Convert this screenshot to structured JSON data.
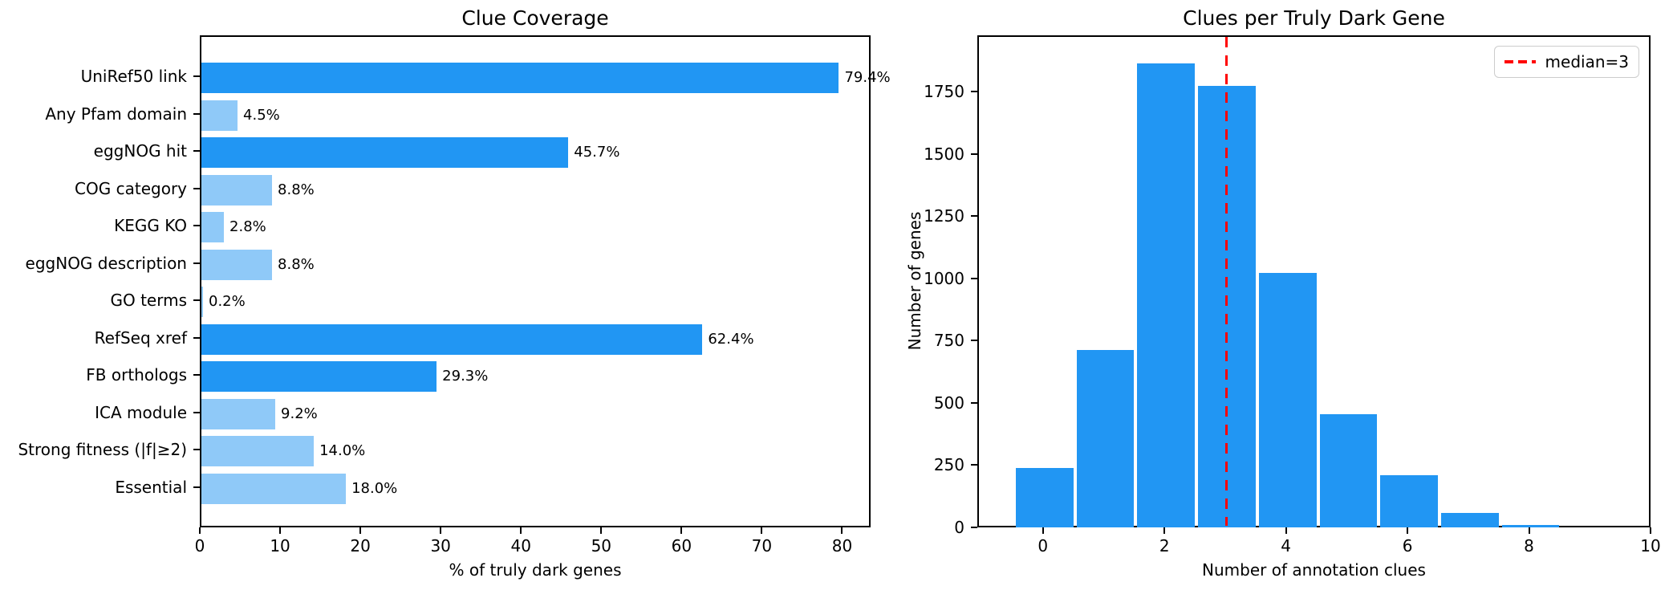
{
  "figure": {
    "background": "#ffffff",
    "text_color": "#000000"
  },
  "colors": {
    "dark_blue": "#2196F3",
    "light_blue": "#8FC9F8",
    "hist_blue": "#2196F3",
    "median_red": "#FF0000",
    "axis_black": "#000000",
    "legend_border": "#cccccc"
  },
  "chart_data": [
    {
      "type": "bar",
      "orientation": "horizontal",
      "title": "Clue Coverage",
      "xlabel": "% of truly dark genes",
      "ylabel": "",
      "grid": false,
      "xlim": [
        0,
        83.55
      ],
      "xticks": [
        0,
        10,
        20,
        30,
        40,
        50,
        60,
        70,
        80
      ],
      "xtick_labels": [
        "0",
        "10",
        "20",
        "30",
        "40",
        "50",
        "60",
        "70",
        "80"
      ],
      "categories": [
        "UniRef50 link",
        "Any Pfam domain",
        "eggNOG hit",
        "COG category",
        "KEGG KO",
        "eggNOG description",
        "GO terms",
        "RefSeq xref",
        "FB orthologs",
        "ICA module",
        "Strong fitness (|f|≥2)",
        "Essential"
      ],
      "values": [
        79.4,
        4.5,
        45.7,
        8.8,
        2.8,
        8.8,
        0.2,
        62.4,
        29.3,
        9.2,
        14.0,
        18.0
      ],
      "value_labels": [
        "79.4%",
        "4.5%",
        "45.7%",
        "8.8%",
        "2.8%",
        "8.8%",
        "0.2%",
        "62.4%",
        "29.3%",
        "9.2%",
        "14.0%",
        "18.0%"
      ],
      "bar_colors": [
        "#2196F3",
        "#8FC9F8",
        "#2196F3",
        "#8FC9F8",
        "#8FC9F8",
        "#8FC9F8",
        "#8FC9F8",
        "#2196F3",
        "#2196F3",
        "#8FC9F8",
        "#8FC9F8",
        "#8FC9F8"
      ]
    },
    {
      "type": "bar",
      "subtype": "histogram",
      "title": "Clues per Truly Dark Gene",
      "xlabel": "Number of annotation clues",
      "ylabel": "Number of genes",
      "grid": false,
      "x": [
        0,
        1,
        2,
        3,
        4,
        5,
        6,
        7,
        8
      ],
      "values": [
        245,
        720,
        1870,
        1780,
        1030,
        460,
        215,
        65,
        15
      ],
      "bin_width": 1,
      "bar_color": "#2196F3",
      "xlim": [
        -1.08,
        10
      ],
      "ylim": [
        0,
        1977
      ],
      "xticks": [
        0,
        2,
        4,
        6,
        8,
        10
      ],
      "xtick_labels": [
        "0",
        "2",
        "4",
        "6",
        "8",
        "10"
      ],
      "yticks": [
        0,
        250,
        500,
        750,
        1000,
        1250,
        1500,
        1750
      ],
      "ytick_labels": [
        "0",
        "250",
        "500",
        "750",
        "1000",
        "1250",
        "1500",
        "1750"
      ],
      "median_line": {
        "x": 3,
        "color": "#FF0000",
        "linestyle": "dashed"
      },
      "legend": {
        "position": "upper right",
        "entries": [
          {
            "label": "median=3",
            "color": "#FF0000",
            "linestyle": "dashed"
          }
        ]
      }
    }
  ]
}
